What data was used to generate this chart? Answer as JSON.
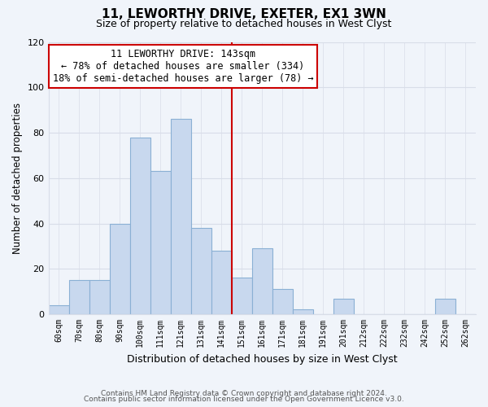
{
  "title": "11, LEWORTHY DRIVE, EXETER, EX1 3WN",
  "subtitle": "Size of property relative to detached houses in West Clyst",
  "xlabel": "Distribution of detached houses by size in West Clyst",
  "ylabel": "Number of detached properties",
  "bar_labels": [
    "60sqm",
    "70sqm",
    "80sqm",
    "90sqm",
    "100sqm",
    "111sqm",
    "121sqm",
    "131sqm",
    "141sqm",
    "151sqm",
    "161sqm",
    "171sqm",
    "181sqm",
    "191sqm",
    "201sqm",
    "212sqm",
    "222sqm",
    "232sqm",
    "242sqm",
    "252sqm",
    "262sqm"
  ],
  "bar_values": [
    4,
    15,
    15,
    40,
    78,
    63,
    86,
    38,
    28,
    16,
    29,
    11,
    2,
    0,
    7,
    0,
    0,
    0,
    0,
    7,
    0
  ],
  "bar_color": "#c8d8ee",
  "bar_edge_color": "#8ab0d4",
  "vline_x_idx": 8,
  "vline_color": "#cc0000",
  "annotation_title": "11 LEWORTHY DRIVE: 143sqm",
  "annotation_line1": "← 78% of detached houses are smaller (334)",
  "annotation_line2": "18% of semi-detached houses are larger (78) →",
  "annotation_box_edge": "#cc0000",
  "annotation_box_facecolor": "#ffffff",
  "ylim": [
    0,
    120
  ],
  "yticks": [
    0,
    20,
    40,
    60,
    80,
    100,
    120
  ],
  "footer1": "Contains HM Land Registry data © Crown copyright and database right 2024.",
  "footer2": "Contains public sector information licensed under the Open Government Licence v3.0.",
  "bg_color": "#f0f4fa",
  "grid_color": "#d8dde8"
}
